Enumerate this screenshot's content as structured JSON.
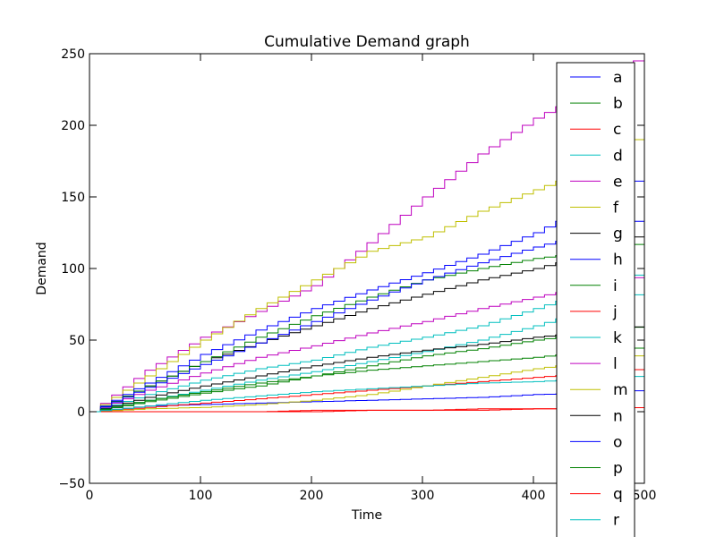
{
  "chart_data": {
    "type": "line",
    "title": "Cumulative Demand graph",
    "xlabel": "Time",
    "ylabel": "Demand",
    "xlim": [
      0,
      500
    ],
    "ylim": [
      -50,
      250
    ],
    "xticks": [
      0,
      100,
      200,
      300,
      400,
      500
    ],
    "xtick_labels": [
      "0",
      "100",
      "200",
      "300",
      "400",
      "500"
    ],
    "yticks": [
      -50,
      0,
      50,
      100,
      150,
      200,
      250
    ],
    "ytick_labels": [
      "−50",
      "0",
      "50",
      "100",
      "150",
      "200",
      "250"
    ],
    "grid": false,
    "legend_position": "right (overflowing plot area)",
    "x": [
      0,
      50,
      100,
      150,
      200,
      250,
      300,
      350,
      400,
      450,
      500
    ],
    "series": [
      {
        "name": "a",
        "color": "#0000ff",
        "values": [
          0,
          4,
          5,
          6,
          7,
          8,
          9,
          10,
          12,
          13,
          15
        ]
      },
      {
        "name": "b",
        "color": "#008000",
        "values": [
          0,
          7,
          13,
          18,
          25,
          32,
          39,
          44,
          50,
          55,
          60
        ]
      },
      {
        "name": "c",
        "color": "#ff0000",
        "values": [
          0,
          0,
          0,
          0,
          0,
          1,
          1,
          1,
          2,
          2,
          3
        ]
      },
      {
        "name": "d",
        "color": "#00bfbf",
        "values": [
          0,
          8,
          15,
          22,
          28,
          35,
          42,
          50,
          60,
          72,
          84
        ]
      },
      {
        "name": "e",
        "color": "#bf00bf",
        "values": [
          0,
          29,
          52,
          70,
          88,
          118,
          150,
          180,
          205,
          225,
          250
        ]
      },
      {
        "name": "f",
        "color": "#bfbf00",
        "values": [
          0,
          25,
          50,
          72,
          92,
          112,
          122,
          140,
          155,
          170,
          195
        ]
      },
      {
        "name": "g",
        "color": "#000000",
        "values": [
          0,
          18,
          35,
          48,
          60,
          72,
          82,
          92,
          100,
          110,
          125
        ]
      },
      {
        "name": "h",
        "color": "#0000ff",
        "values": [
          0,
          20,
          40,
          57,
          72,
          85,
          97,
          110,
          125,
          145,
          165
        ]
      },
      {
        "name": "i",
        "color": "#008000",
        "values": [
          0,
          18,
          35,
          52,
          67,
          80,
          92,
          100,
          107,
          112,
          118
        ]
      },
      {
        "name": "j",
        "color": "#ff0000",
        "values": [
          0,
          3,
          6,
          9,
          12,
          15,
          18,
          21,
          24,
          27,
          30
        ]
      },
      {
        "name": "k",
        "color": "#00bfbf",
        "values": [
          0,
          12,
          22,
          30,
          36,
          45,
          52,
          60,
          72,
          85,
          98
        ]
      },
      {
        "name": "l",
        "color": "#bf00bf",
        "values": [
          0,
          15,
          27,
          38,
          46,
          55,
          63,
          72,
          80,
          88,
          95
        ]
      },
      {
        "name": "m",
        "color": "#bfbf00",
        "values": [
          0,
          2,
          3,
          5,
          8,
          12,
          18,
          24,
          30,
          35,
          40
        ]
      },
      {
        "name": "n",
        "color": "#000000",
        "values": [
          0,
          10,
          18,
          25,
          32,
          38,
          43,
          47,
          52,
          56,
          60
        ]
      },
      {
        "name": "o",
        "color": "#0000ff",
        "values": [
          0,
          17,
          33,
          48,
          63,
          78,
          92,
          104,
          115,
          125,
          135
        ]
      },
      {
        "name": "p",
        "color": "#008000",
        "values": [
          0,
          8,
          14,
          20,
          25,
          29,
          32,
          35,
          38,
          42,
          45
        ]
      },
      {
        "name": "q",
        "color": "#ff0000",
        "values": [
          0,
          0,
          0,
          0,
          1,
          1,
          1,
          2,
          2,
          2,
          3
        ]
      },
      {
        "name": "r",
        "color": "#00bfbf",
        "values": [
          0,
          4,
          8,
          11,
          14,
          16,
          18,
          20,
          21,
          23,
          25
        ]
      }
    ]
  }
}
